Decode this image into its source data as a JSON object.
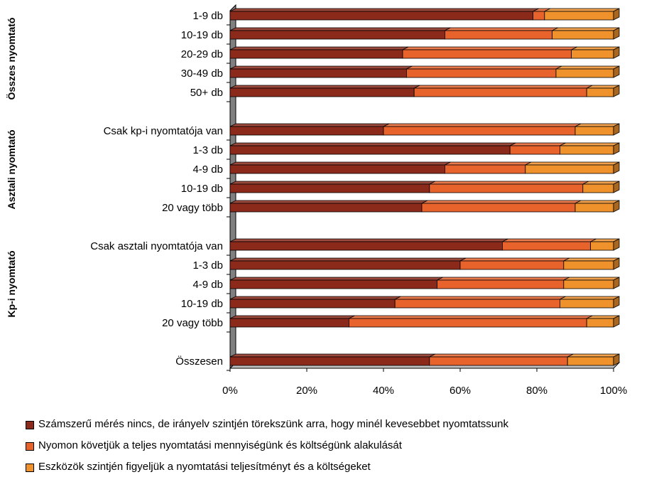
{
  "chart_data": {
    "type": "bar",
    "stacked": true,
    "percent": true,
    "orientation": "horizontal",
    "three_d": true,
    "xlim": [
      0,
      100
    ],
    "x_ticks": [
      "0%",
      "20%",
      "40%",
      "60%",
      "80%",
      "100%"
    ],
    "groups": [
      {
        "label": "Összes nyomtató",
        "categories": [
          "1-9 db",
          "10-19 db",
          "20-29 db",
          "30-49 db",
          "50+ db"
        ]
      },
      {
        "label": "Asztali nyomtató",
        "categories": [
          "Csak kp-i nyomtatója van",
          "1-3 db",
          "4-9 db",
          "10-19 db",
          "20 vagy több"
        ]
      },
      {
        "label": "Kp-i nyomtató",
        "categories": [
          "Csak asztali nyomtatója van",
          "1-3 db",
          "4-9 db",
          "10-19 db",
          "20 vagy több"
        ]
      },
      {
        "label": "",
        "categories": [
          "Összesen"
        ]
      }
    ],
    "series": [
      {
        "name": "Számszerű mérés nincs, de irányelv szintjén törekszünk arra, hogy minél kevesebbet nyomtatssunk",
        "color": "#8B2A1A",
        "values": [
          79,
          56,
          45,
          46,
          48,
          40,
          73,
          56,
          52,
          50,
          71,
          60,
          54,
          43,
          31,
          52
        ]
      },
      {
        "name": "Nyomon követjük a teljes nyomtatási mennyiségünk és költségünk alakulását",
        "color": "#E8622C",
        "values": [
          3,
          28,
          44,
          39,
          45,
          50,
          13,
          21,
          40,
          40,
          23,
          27,
          33,
          43,
          62,
          36
        ]
      },
      {
        "name": "Eszközök szintjén figyeljük a nyomtatási teljesítményt és a költségeket",
        "color": "#F0922C",
        "values": [
          18,
          16,
          11,
          15,
          7,
          10,
          14,
          23,
          8,
          10,
          6,
          13,
          13,
          14,
          7,
          12
        ]
      }
    ],
    "legend_position": "bottom",
    "grid": false
  }
}
